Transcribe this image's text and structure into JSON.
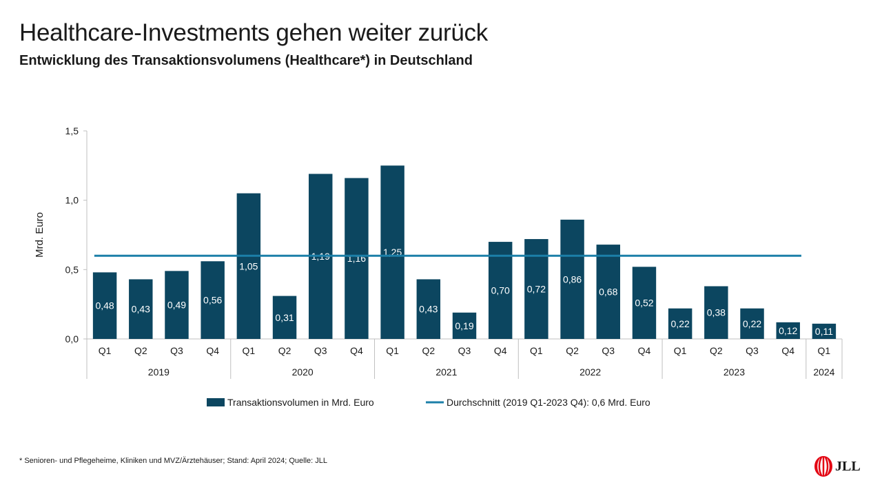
{
  "header": {
    "title": "Healthcare-Investments gehen weiter zurück",
    "subtitle": "Entwicklung des Transaktionsvolumens (Healthcare*) in Deutschland"
  },
  "footnote": "* Senioren- und Pflegeheime, Kliniken und MVZ/Ärztehäuser;  Stand: April 2024; Quelle: JLL",
  "logo": {
    "text": "JLL",
    "color": "#e30613"
  },
  "chart_data": {
    "type": "bar",
    "ylabel": "Mrd. Euro",
    "ylim": [
      0,
      1.5
    ],
    "yticks": [
      "0,0",
      "0,5",
      "1,0",
      "1,5"
    ],
    "quarters": [
      "Q1",
      "Q2",
      "Q3",
      "Q4",
      "Q1",
      "Q2",
      "Q3",
      "Q4",
      "Q1",
      "Q2",
      "Q3",
      "Q4",
      "Q1",
      "Q2",
      "Q3",
      "Q4",
      "Q1",
      "Q2",
      "Q3",
      "Q4",
      "Q1"
    ],
    "years": [
      {
        "label": "2019",
        "count": 4
      },
      {
        "label": "2020",
        "count": 4
      },
      {
        "label": "2021",
        "count": 4
      },
      {
        "label": "2022",
        "count": 4
      },
      {
        "label": "2023",
        "count": 4
      },
      {
        "label": "2024",
        "count": 1
      }
    ],
    "series": [
      {
        "name": "Transaktionsvolumen in Mrd. Euro",
        "type": "bar",
        "color": "#0c4660",
        "values": [
          0.48,
          0.43,
          0.49,
          0.56,
          1.05,
          0.31,
          1.19,
          1.16,
          1.25,
          0.43,
          0.19,
          0.7,
          0.72,
          0.86,
          0.68,
          0.52,
          0.22,
          0.38,
          0.22,
          0.12,
          0.11
        ],
        "labels": [
          "0,48",
          "0,43",
          "0,49",
          "0,56",
          "1,05",
          "0,31",
          "1,19",
          "1,16",
          "1,25",
          "0,43",
          "0,19",
          "0,70",
          "0,72",
          "0,86",
          "0,68",
          "0,52",
          "0,22",
          "0,38",
          "0,22",
          "0,12",
          "0,11"
        ]
      },
      {
        "name": "Durchschnitt (2019 Q1-2023 Q4): 0,6 Mrd. Euro",
        "type": "line",
        "color": "#1b7fa8",
        "value": 0.6,
        "span": [
          "2019 Q1",
          "2023 Q4"
        ]
      }
    ],
    "legend_position": "bottom",
    "grid": false
  }
}
